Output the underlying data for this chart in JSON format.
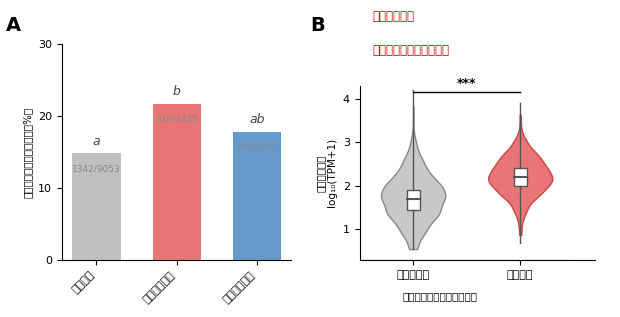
{
  "panel_A": {
    "categories": [
      "全遷伝子",
      "操作中に増加",
      "降作中に減少"
    ],
    "values": [
      14.82,
      21.75,
      17.8
    ],
    "colors": [
      "#c0c0c0",
      "#e87676",
      "#6699cc"
    ],
    "labels": [
      "1342/9053",
      "310/1425",
      "190/1067"
    ],
    "sig_labels": [
      "a",
      "b",
      "ab"
    ],
    "ylabel": "水平伝播の遷伝子の割合（%）",
    "ylim": [
      0,
      30
    ],
    "yticks": [
      0,
      10,
      20,
      30
    ],
    "panel_label": "A"
  },
  "panel_B": {
    "title_line1": "宿主操作中に",
    "title_line2": "発現量が増加する遷伝子",
    "title_color": "#cc0000",
    "violin1_color": "#c8c8c8",
    "violin1_edge": "#888888",
    "violin2_color": "#e87676",
    "violin2_edge": "#cc4444",
    "xlabel1": "非水平伝播",
    "xlabel2": "水平伝播",
    "xlabel_main": "宿主操作中のハリガネムシ",
    "ylabel_line1": "遷伝子発現量",
    "ylabel_line2": "log₁₀(TPM+1)",
    "sig_text": "***",
    "ylim": [
      0.3,
      4.3
    ],
    "yticks": [
      1,
      2,
      3,
      4
    ],
    "panel_label": "B",
    "violin1_data_mean": 1.7,
    "violin1_data_std": 0.55,
    "violin1_q1": 1.45,
    "violin1_median": 1.7,
    "violin1_q3": 1.9,
    "violin1_min": 0.55,
    "violin1_max": 4.2,
    "violin2_data_mean": 2.2,
    "violin2_data_std": 0.45,
    "violin2_q1": 2.0,
    "violin2_median": 2.2,
    "violin2_q3": 2.4,
    "violin2_min": 0.7,
    "violin2_max": 3.9
  },
  "background_color": "#ffffff"
}
